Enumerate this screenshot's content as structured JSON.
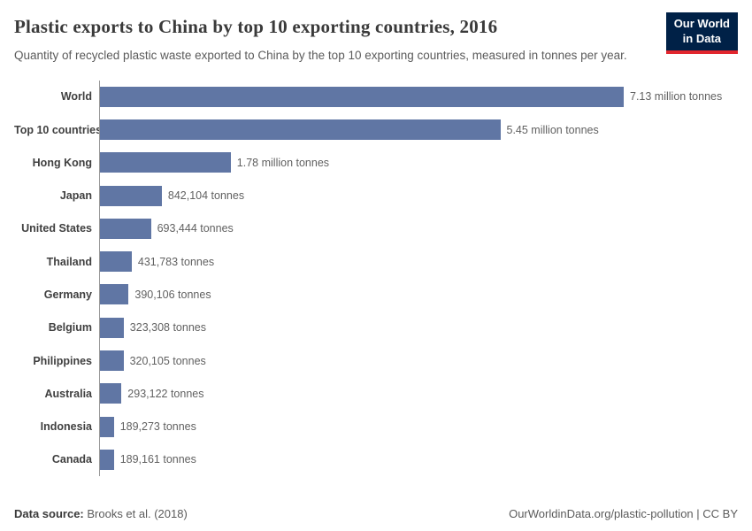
{
  "header": {
    "title": "Plastic exports to China by top 10 exporting countries, 2016",
    "subtitle": "Quantity of recycled plastic waste exported to China by the top 10 exporting countries, measured in tonnes per year.",
    "logo": {
      "line1": "Our World",
      "line2": "in Data"
    }
  },
  "chart_data": {
    "type": "bar",
    "orientation": "horizontal",
    "title": "Plastic exports to China by top 10 exporting countries, 2016",
    "xlabel": "",
    "ylabel": "",
    "unit": "tonnes",
    "xlim": [
      0,
      7130000
    ],
    "grid": false,
    "legend": "none",
    "bar_color": "#6076a4",
    "categories": [
      "World",
      "Top 10 countries",
      "Hong Kong",
      "Japan",
      "United States",
      "Thailand",
      "Germany",
      "Belgium",
      "Philippines",
      "Australia",
      "Indonesia",
      "Canada"
    ],
    "values": [
      7130000,
      5450000,
      1780000,
      842104,
      693444,
      431783,
      390106,
      323308,
      320105,
      293122,
      189273,
      189161
    ],
    "value_labels": [
      "7.13 million tonnes",
      "5.45 million tonnes",
      "1.78 million tonnes",
      "842,104 tonnes",
      "693,444 tonnes",
      "431,783 tonnes",
      "390,106 tonnes",
      "323,308 tonnes",
      "320,105 tonnes",
      "293,122 tonnes",
      "189,273 tonnes",
      "189,161 tonnes"
    ]
  },
  "footer": {
    "datasource_label": "Data source:",
    "datasource_value": " Brooks et al. (2018)",
    "link": "OurWorldinData.org/plastic-pollution | CC BY"
  }
}
